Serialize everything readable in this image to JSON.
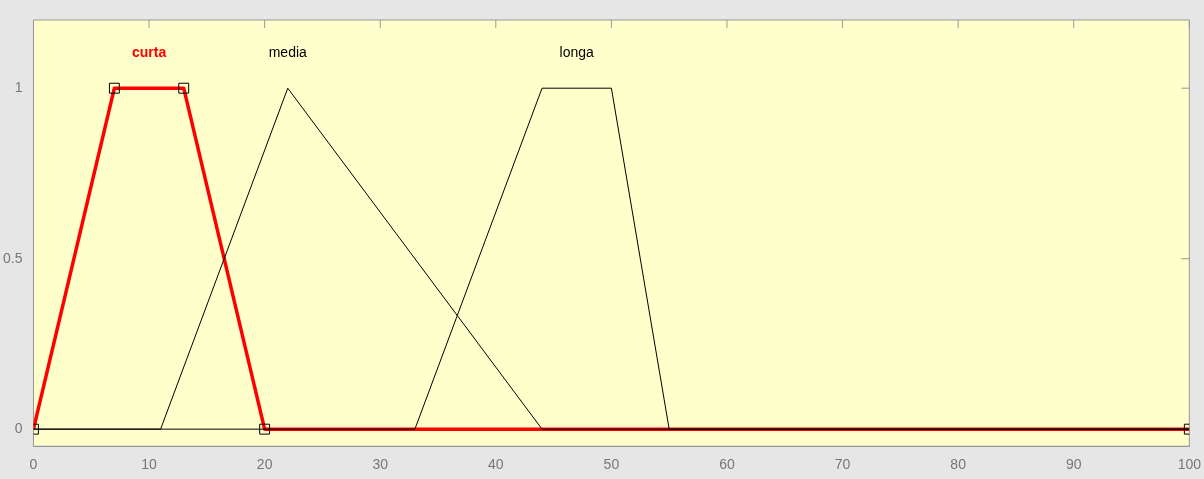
{
  "chart_data": {
    "type": "line",
    "xlim": [
      0,
      100
    ],
    "xticks": [
      0,
      10,
      20,
      30,
      40,
      50,
      60,
      70,
      80,
      90,
      100
    ],
    "ylim": [
      -0.05,
      1.2
    ],
    "yticks": [
      0,
      0.5,
      1
    ],
    "grid": false,
    "legend": false,
    "line_style": "solid",
    "series": [
      {
        "name": "media",
        "color": "#000000",
        "marker": "none",
        "x": [
          0,
          11,
          22,
          44,
          100
        ],
        "values": [
          0,
          0,
          1,
          0,
          0
        ]
      },
      {
        "name": "longa",
        "color": "#000000",
        "marker": "none",
        "x": [
          0,
          33,
          44,
          50,
          55,
          100
        ],
        "values": [
          0,
          0,
          1,
          1,
          0,
          0
        ]
      },
      {
        "name": "curta",
        "color": "#ff0000",
        "marker": "square",
        "x": [
          0,
          7,
          13,
          20,
          100
        ],
        "values": [
          0,
          1,
          1,
          0,
          0
        ]
      }
    ]
  }
}
